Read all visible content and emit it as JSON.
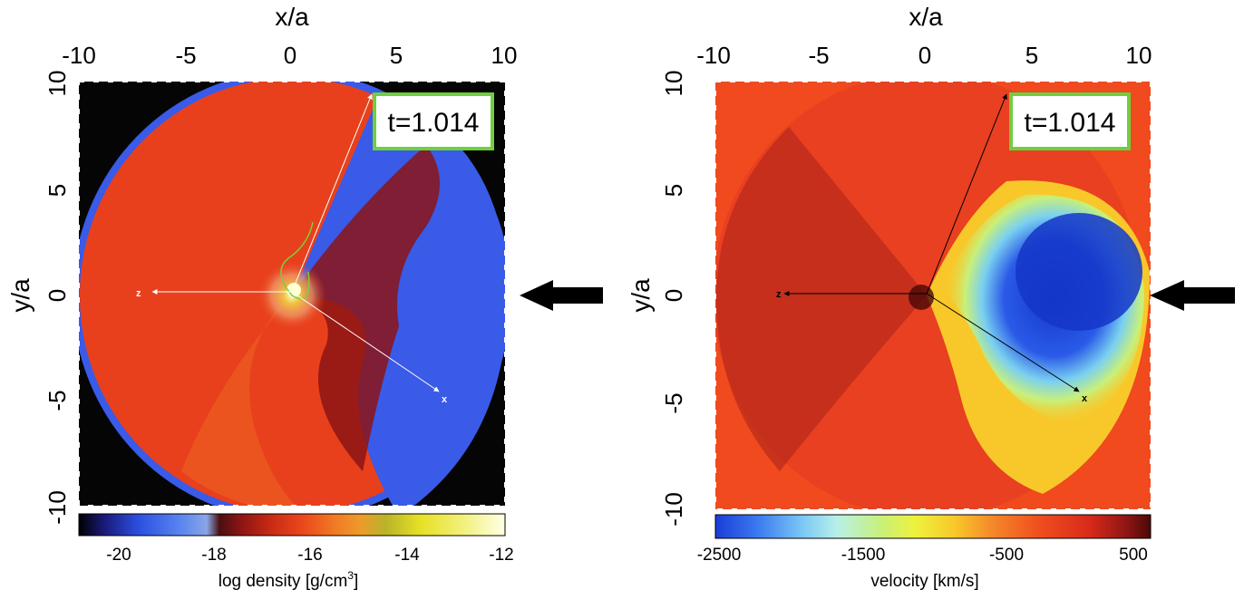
{
  "panels": [
    {
      "id": "density",
      "x_axis_label": "x/a",
      "y_axis_label": "y/a",
      "x_ticks": [
        "-10",
        "-5",
        "0",
        "5",
        "10"
      ],
      "y_ticks": [
        "10",
        "5",
        "0",
        "-5",
        "-10"
      ],
      "time_label": "t=1.014",
      "axis_labels": {
        "z": "z",
        "x": "x"
      },
      "colorbar": {
        "ticks": [
          "-20",
          "-18",
          "-16",
          "-14",
          "-12"
        ],
        "label": "log density [g/cm",
        "label_sup": "3",
        "label_end": "]",
        "colors": [
          "#000000",
          "#1a1a7a",
          "#2c4fe0",
          "#5a86f0",
          "#8aa6e6",
          "#4a1010",
          "#8c1414",
          "#c82a14",
          "#ec4a1c",
          "#f07a24",
          "#ee9a2a",
          "#b8b42a",
          "#e6e024",
          "#f2f07a",
          "#ffffe6"
        ]
      }
    },
    {
      "id": "velocity",
      "x_axis_label": "x/a",
      "y_axis_label": "y/a",
      "x_ticks": [
        "-10",
        "-5",
        "0",
        "5",
        "10"
      ],
      "y_ticks": [
        "10",
        "5",
        "0",
        "-5",
        "-10"
      ],
      "time_label": "t=1.014",
      "axis_labels": {
        "z": "z",
        "x": "x"
      },
      "colorbar": {
        "ticks": [
          "-2500",
          "-1500",
          "-500",
          "500"
        ],
        "label": "velocity [km/s]",
        "colors": [
          "#1a3cd8",
          "#3c7cf0",
          "#7ac8f4",
          "#b8f0e8",
          "#c8f07a",
          "#eef23c",
          "#f8c82a",
          "#f4862a",
          "#f0501e",
          "#d82a1a",
          "#8a1414",
          "#4a0808"
        ]
      }
    }
  ],
  "colors": {
    "time_box_border": "#6fcf3f",
    "arrow": "#000000",
    "density_background": "#050505",
    "density_blue": "#3a5ae8",
    "density_red": "#e8401c",
    "velocity_red": "#f04a1e",
    "velocity_blue": "#1436c8"
  }
}
